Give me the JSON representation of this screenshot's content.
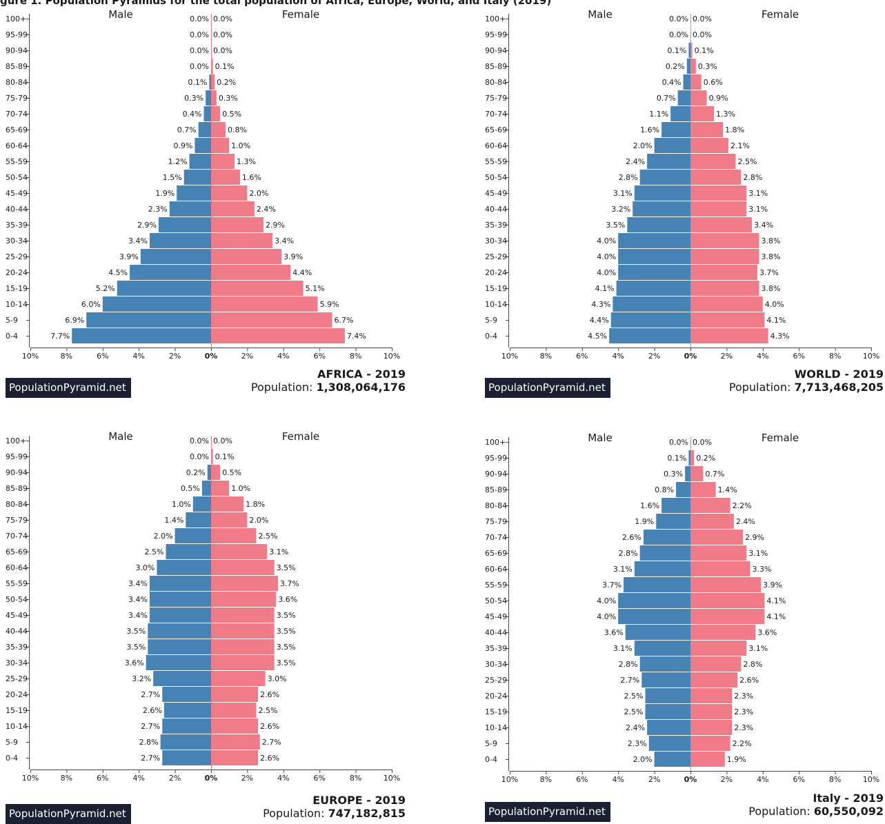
{
  "header": {
    "caption": "gure 1. Population Pyramids for the total population of Africa, Europe, World, and Italy (2019)"
  },
  "colors": {
    "male": "#4682b4",
    "female": "#f07b89",
    "axis": "#444444",
    "text": "#1a1a1a",
    "brand_bg": "#1b2033",
    "brand_text": "#ffffff"
  },
  "panels": [
    {
      "title": "AFRICA - 2019",
      "population_label": "Population: ",
      "population_value": "1,308,064,176",
      "brand": "PopulationPyramid.net"
    },
    {
      "title": "WORLD - 2019",
      "population_label": "Population: ",
      "population_value": "7,713,468,205",
      "brand": "PopulationPyramid.net"
    },
    {
      "title": "EUROPE - 2019",
      "population_label": "Population: ",
      "population_value": "747,182,815",
      "brand": "PopulationPyramid.net"
    },
    {
      "title": "Italy - 2019",
      "population_label": "Population: ",
      "population_value": "60,550,092",
      "brand": "PopulationPyramid.net"
    }
  ],
  "chart_data": [
    {
      "type": "bar",
      "orientation": "horizontal-pyramid",
      "title": "AFRICA - 2019",
      "categories": [
        "100+",
        "95-99",
        "90-94",
        "85-89",
        "80-84",
        "75-79",
        "70-74",
        "65-69",
        "60-64",
        "55-59",
        "50-54",
        "45-49",
        "40-44",
        "35-39",
        "30-34",
        "25-29",
        "20-24",
        "15-19",
        "10-14",
        "5-9",
        "0-4"
      ],
      "series": [
        {
          "name": "Male",
          "values": [
            0.0,
            0.0,
            0.0,
            0.0,
            0.1,
            0.3,
            0.4,
            0.7,
            0.9,
            1.2,
            1.5,
            1.9,
            2.3,
            2.9,
            3.4,
            3.9,
            4.5,
            5.2,
            6.0,
            6.9,
            7.7
          ]
        },
        {
          "name": "Female",
          "values": [
            0.0,
            0.0,
            0.0,
            0.1,
            0.2,
            0.3,
            0.5,
            0.8,
            1.0,
            1.3,
            1.6,
            2.0,
            2.4,
            2.9,
            3.4,
            3.9,
            4.4,
            5.1,
            5.9,
            6.7,
            7.4
          ]
        }
      ],
      "xticks": [
        "10%",
        "8%",
        "6%",
        "4%",
        "2%",
        "0%",
        "2%",
        "4%",
        "6%",
        "8%",
        "10%"
      ],
      "xlim": [
        -10,
        10
      ],
      "unit": "%"
    },
    {
      "type": "bar",
      "orientation": "horizontal-pyramid",
      "title": "WORLD - 2019",
      "categories": [
        "100+",
        "95-99",
        "90-94",
        "85-89",
        "80-84",
        "75-79",
        "70-74",
        "65-69",
        "60-64",
        "55-59",
        "50-54",
        "45-49",
        "40-44",
        "35-39",
        "30-34",
        "25-29",
        "20-24",
        "15-19",
        "10-14",
        "5-9",
        "0-4"
      ],
      "series": [
        {
          "name": "Male",
          "values": [
            0.0,
            0.0,
            0.1,
            0.2,
            0.4,
            0.7,
            1.1,
            1.6,
            2.0,
            2.4,
            2.8,
            3.1,
            3.2,
            3.5,
            4.0,
            4.0,
            4.0,
            4.1,
            4.3,
            4.4,
            4.5
          ]
        },
        {
          "name": "Female",
          "values": [
            0.0,
            0.0,
            0.1,
            0.3,
            0.6,
            0.9,
            1.3,
            1.8,
            2.1,
            2.5,
            2.8,
            3.1,
            3.1,
            3.4,
            3.8,
            3.8,
            3.7,
            3.8,
            4.0,
            4.1,
            4.3
          ]
        }
      ],
      "xticks": [
        "10%",
        "8%",
        "6%",
        "4%",
        "2%",
        "0%",
        "2%",
        "4%",
        "6%",
        "8%",
        "10%"
      ],
      "xlim": [
        -10,
        10
      ],
      "unit": "%"
    },
    {
      "type": "bar",
      "orientation": "horizontal-pyramid",
      "title": "EUROPE - 2019",
      "categories": [
        "100+",
        "95-99",
        "90-94",
        "85-89",
        "80-84",
        "75-79",
        "70-74",
        "65-69",
        "60-64",
        "55-59",
        "50-54",
        "45-49",
        "40-44",
        "35-39",
        "30-34",
        "25-29",
        "20-24",
        "15-19",
        "10-14",
        "5-9",
        "0-4"
      ],
      "series": [
        {
          "name": "Male",
          "values": [
            0.0,
            0.0,
            0.2,
            0.5,
            1.0,
            1.4,
            2.0,
            2.5,
            3.0,
            3.4,
            3.4,
            3.4,
            3.5,
            3.5,
            3.6,
            3.2,
            2.7,
            2.6,
            2.7,
            2.8,
            2.7
          ]
        },
        {
          "name": "Female",
          "values": [
            0.0,
            0.1,
            0.5,
            1.0,
            1.8,
            2.0,
            2.5,
            3.1,
            3.5,
            3.7,
            3.6,
            3.5,
            3.5,
            3.5,
            3.5,
            3.0,
            2.6,
            2.5,
            2.6,
            2.7,
            2.6
          ]
        }
      ],
      "xticks": [
        "10%",
        "8%",
        "6%",
        "4%",
        "2%",
        "0%",
        "2%",
        "4%",
        "6%",
        "8%",
        "10%"
      ],
      "xlim": [
        -10,
        10
      ],
      "unit": "%"
    },
    {
      "type": "bar",
      "orientation": "horizontal-pyramid",
      "title": "Italy - 2019",
      "categories": [
        "100+",
        "95-99",
        "90-94",
        "85-89",
        "80-84",
        "75-79",
        "70-74",
        "65-69",
        "60-64",
        "55-59",
        "50-54",
        "45-49",
        "40-44",
        "35-39",
        "30-34",
        "25-29",
        "20-24",
        "15-19",
        "10-14",
        "5-9",
        "0-4"
      ],
      "series": [
        {
          "name": "Male",
          "values": [
            0.0,
            0.1,
            0.3,
            0.8,
            1.6,
            1.9,
            2.6,
            2.8,
            3.1,
            3.7,
            4.0,
            4.0,
            3.6,
            3.1,
            2.8,
            2.7,
            2.5,
            2.5,
            2.4,
            2.3,
            2.0
          ]
        },
        {
          "name": "Female",
          "values": [
            0.0,
            0.2,
            0.7,
            1.4,
            2.2,
            2.4,
            2.9,
            3.1,
            3.3,
            3.9,
            4.1,
            4.1,
            3.6,
            3.1,
            2.8,
            2.6,
            2.3,
            2.3,
            2.3,
            2.2,
            1.9
          ]
        }
      ],
      "xticks": [
        "10%",
        "8%",
        "6%",
        "4%",
        "2%",
        "0%",
        "2%",
        "4%",
        "6%",
        "8%",
        "10%"
      ],
      "xlim": [
        -10,
        10
      ],
      "unit": "%"
    }
  ]
}
